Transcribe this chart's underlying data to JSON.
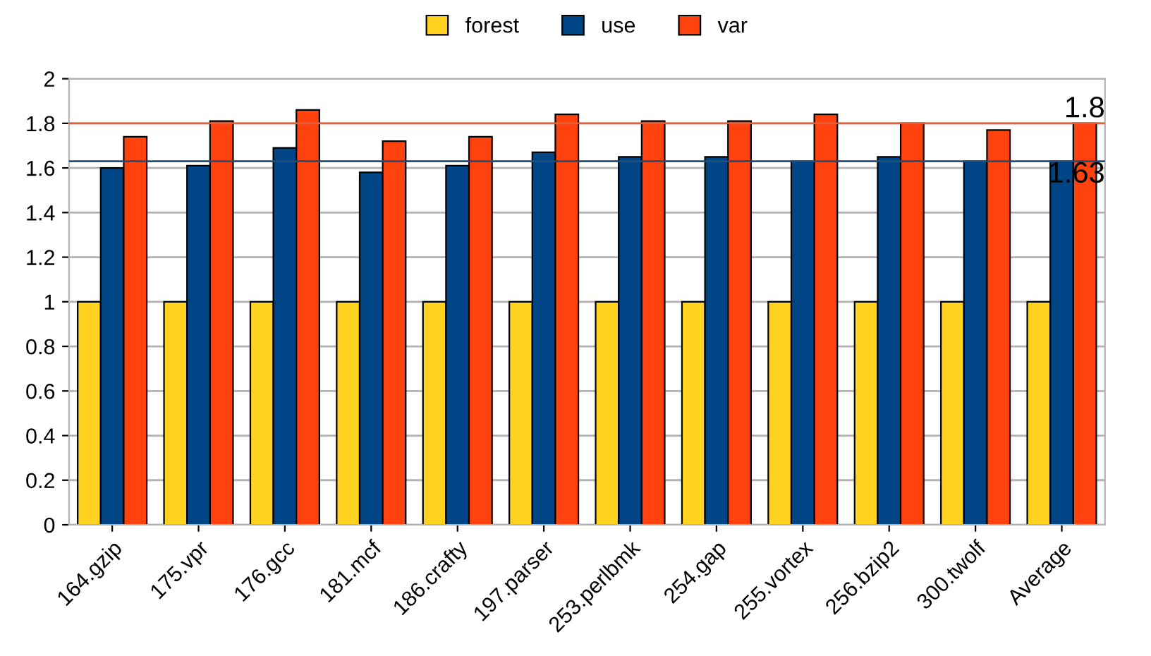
{
  "chart_data": {
    "type": "bar",
    "categories": [
      "164.gzip",
      "175.vpr",
      "176.gcc",
      "181.mcf",
      "186.crafty",
      "197.parser",
      "253.perlbmk",
      "254.gap",
      "255.vortex",
      "256.bzip2",
      "300.twolf",
      "Average"
    ],
    "series": [
      {
        "name": "forest",
        "color": "#ffd320",
        "values": [
          1,
          1,
          1,
          1,
          1,
          1,
          1,
          1,
          1,
          1,
          1,
          1
        ]
      },
      {
        "name": "use",
        "color": "#004586",
        "values": [
          1.6,
          1.61,
          1.69,
          1.58,
          1.61,
          1.67,
          1.65,
          1.65,
          1.63,
          1.65,
          1.63,
          1.63
        ]
      },
      {
        "name": "var",
        "color": "#ff420e",
        "values": [
          1.74,
          1.81,
          1.86,
          1.72,
          1.74,
          1.84,
          1.81,
          1.81,
          1.84,
          1.8,
          1.77,
          1.8
        ]
      }
    ],
    "ylim": [
      0,
      2
    ],
    "yticks": [
      0,
      0.2,
      0.4,
      0.6,
      0.8,
      1,
      1.2,
      1.4,
      1.6,
      1.8,
      2
    ],
    "ref_lines": [
      {
        "axis": "y",
        "value": 1.8,
        "label": "1.8",
        "color": "#e0603a"
      },
      {
        "axis": "y",
        "value": 1.63,
        "label": "1.63",
        "color": "#1f4e79"
      }
    ],
    "grid": "y",
    "legend": "top"
  }
}
